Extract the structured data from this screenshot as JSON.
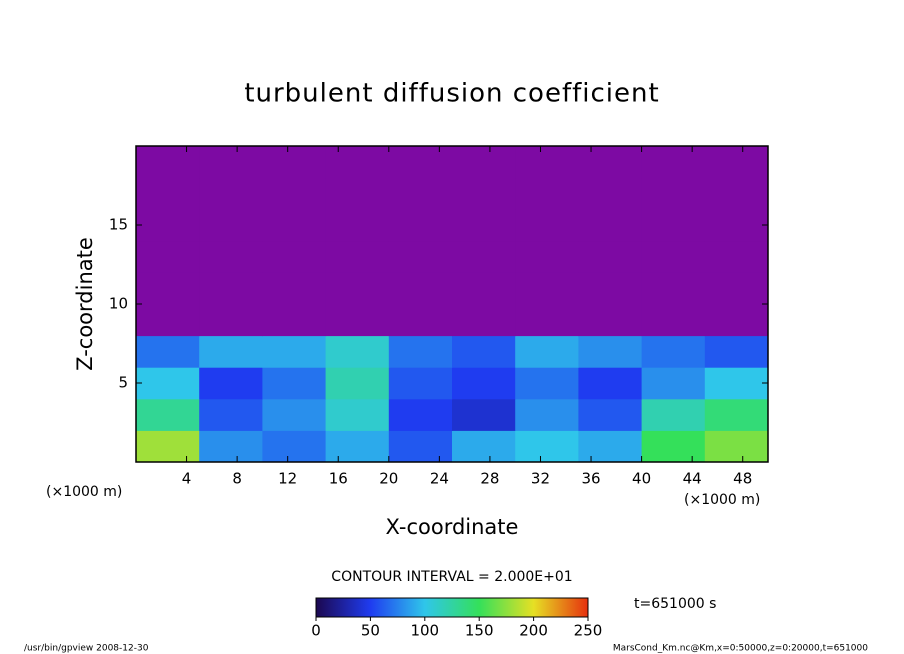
{
  "chart_data": {
    "type": "contour",
    "title": "turbulent diffusion coefficient",
    "x_label": "X-coordinate",
    "y_label": "Z-coordinate",
    "x_unit": "(×1000 m)",
    "y_unit": "(×1000 m)",
    "xlim": [
      0,
      50
    ],
    "xticks": [
      4,
      8,
      12,
      16,
      20,
      24,
      28,
      32,
      36,
      40,
      44,
      48
    ],
    "ylim": [
      0,
      20
    ],
    "yticks": [
      5,
      10,
      15
    ],
    "x_edges": [
      0,
      5,
      10,
      15,
      20,
      25,
      30,
      35,
      40,
      45,
      50
    ],
    "y_edges": [
      0,
      2,
      4,
      6,
      8,
      10,
      12,
      14,
      16,
      18,
      20
    ],
    "z": [
      [
        180,
        80,
        70,
        90,
        60,
        90,
        100,
        90,
        150,
        170
      ],
      [
        130,
        60,
        80,
        110,
        50,
        40,
        80,
        60,
        120,
        140
      ],
      [
        100,
        50,
        70,
        120,
        60,
        50,
        70,
        50,
        80,
        100
      ],
      [
        70,
        90,
        90,
        110,
        70,
        60,
        90,
        80,
        70,
        60
      ],
      [
        10,
        5,
        5,
        5,
        10,
        10,
        10,
        5,
        10,
        10
      ],
      [
        0,
        0,
        0,
        0,
        0,
        0,
        0,
        0,
        0,
        0
      ],
      [
        0,
        0,
        0,
        0,
        0,
        0,
        0,
        0,
        0,
        0
      ],
      [
        0,
        0,
        0,
        0,
        0,
        0,
        0,
        0,
        0,
        0
      ],
      [
        0,
        0,
        0,
        0,
        0,
        0,
        0,
        0,
        0,
        0
      ],
      [
        0,
        0,
        0,
        0,
        0,
        0,
        0,
        0,
        0,
        0
      ]
    ],
    "contour_interval": {
      "value": 20,
      "label": "CONTOUR INTERVAL = 2.000E+01"
    },
    "under_color": "#7d0aa3",
    "colormap": [
      "#1c0850",
      "#1f3cf0",
      "#2fc6ea",
      "#34e05a",
      "#e6e024",
      "#e6300e"
    ],
    "clim": [
      0,
      250
    ],
    "colorbar_ticks": [
      0,
      50,
      100,
      150,
      200,
      250
    ],
    "time_label": "t=651000 s",
    "footer_left": "/usr/bin/gpview   2008-12-30",
    "footer_right": "MarsCond_Km.nc@Km,x=0:50000,z=0:20000,t=651000"
  }
}
